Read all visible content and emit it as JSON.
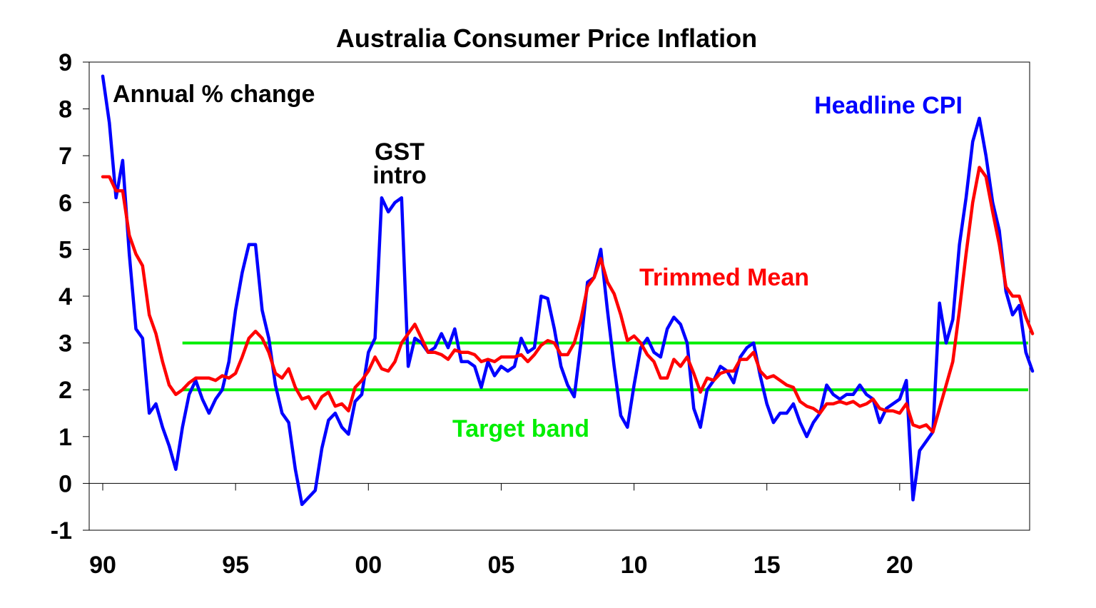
{
  "chart_data": {
    "type": "line",
    "title": "Australia Consumer Price Inflation",
    "subtitle": "Annual % change",
    "xlabel": "",
    "ylabel": "",
    "ylim": [
      -1,
      9
    ],
    "xlim": [
      1990,
      2025
    ],
    "yticks": [
      -1,
      0,
      1,
      2,
      3,
      4,
      5,
      6,
      7,
      8,
      9
    ],
    "ytick_labels": [
      "-1",
      "0",
      "1",
      "2",
      "3",
      "4",
      "5",
      "6",
      "7",
      "8",
      "9"
    ],
    "xticks": [
      1990,
      1995,
      2000,
      2005,
      2010,
      2015,
      2020
    ],
    "xtick_labels": [
      "90",
      "95",
      "00",
      "05",
      "10",
      "15",
      "20"
    ],
    "grid": false,
    "colors": {
      "headline": "#0000ff",
      "trimmed": "#ff0000",
      "target": "#00ee00",
      "axis": "#000000"
    },
    "annotations": [
      {
        "name": "gst",
        "lines": [
          "GST",
          "intro"
        ],
        "color": "#000000"
      },
      {
        "name": "headline",
        "lines": [
          "Headline CPI"
        ],
        "color": "#0000ff"
      },
      {
        "name": "trimmed",
        "lines": [
          "Trimmed Mean"
        ],
        "color": "#ff0000"
      },
      {
        "name": "target",
        "lines": [
          "Target band"
        ],
        "color": "#00ee00"
      }
    ],
    "target_band": {
      "lower": 2,
      "upper": 3,
      "x_start": 1993.0,
      "x_end": 2025.0
    },
    "series": [
      {
        "name": "Headline CPI",
        "color": "#0000ff",
        "points": [
          [
            1990.0,
            8.7
          ],
          [
            1990.25,
            7.7
          ],
          [
            1990.5,
            6.1
          ],
          [
            1990.75,
            6.9
          ],
          [
            1991.0,
            4.9
          ],
          [
            1991.25,
            3.3
          ],
          [
            1991.5,
            3.1
          ],
          [
            1991.75,
            1.5
          ],
          [
            1992.0,
            1.7
          ],
          [
            1992.25,
            1.2
          ],
          [
            1992.5,
            0.8
          ],
          [
            1992.75,
            0.3
          ],
          [
            1993.0,
            1.2
          ],
          [
            1993.25,
            1.9
          ],
          [
            1993.5,
            2.2
          ],
          [
            1993.75,
            1.8
          ],
          [
            1994.0,
            1.5
          ],
          [
            1994.25,
            1.8
          ],
          [
            1994.5,
            2.0
          ],
          [
            1994.75,
            2.6
          ],
          [
            1995.0,
            3.7
          ],
          [
            1995.25,
            4.5
          ],
          [
            1995.5,
            5.1
          ],
          [
            1995.75,
            5.1
          ],
          [
            1996.0,
            3.7
          ],
          [
            1996.25,
            3.1
          ],
          [
            1996.5,
            2.1
          ],
          [
            1996.75,
            1.5
          ],
          [
            1997.0,
            1.3
          ],
          [
            1997.25,
            0.3
          ],
          [
            1997.5,
            -0.45
          ],
          [
            1997.75,
            -0.3
          ],
          [
            1998.0,
            -0.15
          ],
          [
            1998.25,
            0.75
          ],
          [
            1998.5,
            1.35
          ],
          [
            1998.75,
            1.5
          ],
          [
            1999.0,
            1.2
          ],
          [
            1999.25,
            1.05
          ],
          [
            1999.5,
            1.75
          ],
          [
            1999.75,
            1.9
          ],
          [
            2000.0,
            2.8
          ],
          [
            2000.25,
            3.1
          ],
          [
            2000.5,
            6.1
          ],
          [
            2000.75,
            5.8
          ],
          [
            2001.0,
            6.0
          ],
          [
            2001.25,
            6.1
          ],
          [
            2001.5,
            2.5
          ],
          [
            2001.75,
            3.1
          ],
          [
            2002.0,
            3.0
          ],
          [
            2002.25,
            2.8
          ],
          [
            2002.5,
            2.9
          ],
          [
            2002.75,
            3.2
          ],
          [
            2003.0,
            2.9
          ],
          [
            2003.25,
            3.3
          ],
          [
            2003.5,
            2.6
          ],
          [
            2003.75,
            2.6
          ],
          [
            2004.0,
            2.5
          ],
          [
            2004.25,
            2.05
          ],
          [
            2004.5,
            2.6
          ],
          [
            2004.75,
            2.3
          ],
          [
            2005.0,
            2.5
          ],
          [
            2005.25,
            2.4
          ],
          [
            2005.5,
            2.5
          ],
          [
            2005.75,
            3.1
          ],
          [
            2006.0,
            2.8
          ],
          [
            2006.25,
            2.9
          ],
          [
            2006.5,
            4.0
          ],
          [
            2006.75,
            3.95
          ],
          [
            2007.0,
            3.3
          ],
          [
            2007.25,
            2.5
          ],
          [
            2007.5,
            2.1
          ],
          [
            2007.75,
            1.85
          ],
          [
            2008.0,
            3.0
          ],
          [
            2008.25,
            4.3
          ],
          [
            2008.5,
            4.4
          ],
          [
            2008.75,
            5.0
          ],
          [
            2009.0,
            3.7
          ],
          [
            2009.25,
            2.5
          ],
          [
            2009.5,
            1.45
          ],
          [
            2009.75,
            1.2
          ],
          [
            2010.0,
            2.1
          ],
          [
            2010.25,
            2.9
          ],
          [
            2010.5,
            3.1
          ],
          [
            2010.75,
            2.8
          ],
          [
            2011.0,
            2.7
          ],
          [
            2011.25,
            3.3
          ],
          [
            2011.5,
            3.55
          ],
          [
            2011.75,
            3.4
          ],
          [
            2012.0,
            3.0
          ],
          [
            2012.25,
            1.6
          ],
          [
            2012.5,
            1.2
          ],
          [
            2012.75,
            2.0
          ],
          [
            2013.0,
            2.2
          ],
          [
            2013.25,
            2.5
          ],
          [
            2013.5,
            2.4
          ],
          [
            2013.75,
            2.15
          ],
          [
            2014.0,
            2.7
          ],
          [
            2014.25,
            2.9
          ],
          [
            2014.5,
            3.0
          ],
          [
            2014.75,
            2.3
          ],
          [
            2015.0,
            1.7
          ],
          [
            2015.25,
            1.3
          ],
          [
            2015.5,
            1.5
          ],
          [
            2015.75,
            1.5
          ],
          [
            2016.0,
            1.7
          ],
          [
            2016.25,
            1.3
          ],
          [
            2016.5,
            1.0
          ],
          [
            2016.75,
            1.3
          ],
          [
            2017.0,
            1.5
          ],
          [
            2017.25,
            2.1
          ],
          [
            2017.5,
            1.9
          ],
          [
            2017.75,
            1.8
          ],
          [
            2018.0,
            1.9
          ],
          [
            2018.25,
            1.9
          ],
          [
            2018.5,
            2.1
          ],
          [
            2018.75,
            1.9
          ],
          [
            2019.0,
            1.8
          ],
          [
            2019.25,
            1.3
          ],
          [
            2019.5,
            1.6
          ],
          [
            2019.75,
            1.7
          ],
          [
            2020.0,
            1.8
          ],
          [
            2020.25,
            2.2
          ],
          [
            2020.5,
            -0.35
          ],
          [
            2020.75,
            0.7
          ],
          [
            2021.0,
            0.9
          ],
          [
            2021.25,
            1.1
          ],
          [
            2021.5,
            3.85
          ],
          [
            2021.75,
            3.0
          ],
          [
            2022.0,
            3.5
          ],
          [
            2022.25,
            5.1
          ],
          [
            2022.5,
            6.1
          ],
          [
            2022.75,
            7.3
          ],
          [
            2023.0,
            7.8
          ],
          [
            2023.25,
            7.0
          ],
          [
            2023.5,
            6.0
          ],
          [
            2023.75,
            5.4
          ],
          [
            2024.0,
            4.1
          ],
          [
            2024.25,
            3.6
          ],
          [
            2024.5,
            3.8
          ],
          [
            2024.75,
            2.8
          ],
          [
            2025.0,
            2.4
          ]
        ]
      },
      {
        "name": "Trimmed Mean",
        "color": "#ff0000",
        "points": [
          [
            1990.0,
            6.55
          ],
          [
            1990.25,
            6.55
          ],
          [
            1990.5,
            6.25
          ],
          [
            1990.75,
            6.25
          ],
          [
            1991.0,
            5.3
          ],
          [
            1991.25,
            4.9
          ],
          [
            1991.5,
            4.65
          ],
          [
            1991.75,
            3.6
          ],
          [
            1992.0,
            3.2
          ],
          [
            1992.25,
            2.6
          ],
          [
            1992.5,
            2.1
          ],
          [
            1992.75,
            1.9
          ],
          [
            1993.0,
            2.0
          ],
          [
            1993.25,
            2.15
          ],
          [
            1993.5,
            2.25
          ],
          [
            1993.75,
            2.25
          ],
          [
            1994.0,
            2.25
          ],
          [
            1994.25,
            2.2
          ],
          [
            1994.5,
            2.3
          ],
          [
            1994.75,
            2.25
          ],
          [
            1995.0,
            2.35
          ],
          [
            1995.25,
            2.7
          ],
          [
            1995.5,
            3.1
          ],
          [
            1995.75,
            3.25
          ],
          [
            1996.0,
            3.1
          ],
          [
            1996.25,
            2.8
          ],
          [
            1996.5,
            2.35
          ],
          [
            1996.75,
            2.25
          ],
          [
            1997.0,
            2.45
          ],
          [
            1997.25,
            2.05
          ],
          [
            1997.5,
            1.8
          ],
          [
            1997.75,
            1.85
          ],
          [
            1998.0,
            1.6
          ],
          [
            1998.25,
            1.85
          ],
          [
            1998.5,
            1.95
          ],
          [
            1998.75,
            1.65
          ],
          [
            1999.0,
            1.7
          ],
          [
            1999.25,
            1.55
          ],
          [
            1999.5,
            2.05
          ],
          [
            1999.75,
            2.2
          ],
          [
            2000.0,
            2.4
          ],
          [
            2000.25,
            2.7
          ],
          [
            2000.5,
            2.45
          ],
          [
            2000.75,
            2.4
          ],
          [
            2001.0,
            2.6
          ],
          [
            2001.25,
            3.0
          ],
          [
            2001.5,
            3.2
          ],
          [
            2001.75,
            3.4
          ],
          [
            2002.0,
            3.1
          ],
          [
            2002.25,
            2.8
          ],
          [
            2002.5,
            2.8
          ],
          [
            2002.75,
            2.75
          ],
          [
            2003.0,
            2.65
          ],
          [
            2003.25,
            2.85
          ],
          [
            2003.5,
            2.8
          ],
          [
            2003.75,
            2.8
          ],
          [
            2004.0,
            2.75
          ],
          [
            2004.25,
            2.6
          ],
          [
            2004.5,
            2.65
          ],
          [
            2004.75,
            2.6
          ],
          [
            2005.0,
            2.7
          ],
          [
            2005.25,
            2.7
          ],
          [
            2005.5,
            2.7
          ],
          [
            2005.75,
            2.75
          ],
          [
            2006.0,
            2.6
          ],
          [
            2006.25,
            2.75
          ],
          [
            2006.5,
            2.95
          ],
          [
            2006.75,
            3.05
          ],
          [
            2007.0,
            3.0
          ],
          [
            2007.25,
            2.75
          ],
          [
            2007.5,
            2.75
          ],
          [
            2007.75,
            3.0
          ],
          [
            2008.0,
            3.5
          ],
          [
            2008.25,
            4.2
          ],
          [
            2008.5,
            4.4
          ],
          [
            2008.75,
            4.8
          ],
          [
            2009.0,
            4.3
          ],
          [
            2009.25,
            4.05
          ],
          [
            2009.5,
            3.6
          ],
          [
            2009.75,
            3.05
          ],
          [
            2010.0,
            3.15
          ],
          [
            2010.25,
            3.0
          ],
          [
            2010.5,
            2.75
          ],
          [
            2010.75,
            2.6
          ],
          [
            2011.0,
            2.25
          ],
          [
            2011.25,
            2.25
          ],
          [
            2011.5,
            2.65
          ],
          [
            2011.75,
            2.5
          ],
          [
            2012.0,
            2.7
          ],
          [
            2012.25,
            2.35
          ],
          [
            2012.5,
            1.95
          ],
          [
            2012.75,
            2.25
          ],
          [
            2013.0,
            2.2
          ],
          [
            2013.25,
            2.35
          ],
          [
            2013.5,
            2.4
          ],
          [
            2013.75,
            2.4
          ],
          [
            2014.0,
            2.65
          ],
          [
            2014.25,
            2.65
          ],
          [
            2014.5,
            2.8
          ],
          [
            2014.75,
            2.4
          ],
          [
            2015.0,
            2.25
          ],
          [
            2015.25,
            2.3
          ],
          [
            2015.5,
            2.2
          ],
          [
            2015.75,
            2.1
          ],
          [
            2016.0,
            2.05
          ],
          [
            2016.25,
            1.75
          ],
          [
            2016.5,
            1.65
          ],
          [
            2016.75,
            1.6
          ],
          [
            2017.0,
            1.5
          ],
          [
            2017.25,
            1.7
          ],
          [
            2017.5,
            1.7
          ],
          [
            2017.75,
            1.75
          ],
          [
            2018.0,
            1.7
          ],
          [
            2018.25,
            1.75
          ],
          [
            2018.5,
            1.65
          ],
          [
            2018.75,
            1.7
          ],
          [
            2019.0,
            1.8
          ],
          [
            2019.25,
            1.6
          ],
          [
            2019.5,
            1.55
          ],
          [
            2019.75,
            1.55
          ],
          [
            2020.0,
            1.5
          ],
          [
            2020.25,
            1.7
          ],
          [
            2020.5,
            1.25
          ],
          [
            2020.75,
            1.2
          ],
          [
            2021.0,
            1.25
          ],
          [
            2021.25,
            1.1
          ],
          [
            2021.5,
            1.6
          ],
          [
            2021.75,
            2.1
          ],
          [
            2022.0,
            2.6
          ],
          [
            2022.25,
            3.7
          ],
          [
            2022.5,
            4.9
          ],
          [
            2022.75,
            6.0
          ],
          [
            2023.0,
            6.75
          ],
          [
            2023.25,
            6.55
          ],
          [
            2023.5,
            5.8
          ],
          [
            2023.75,
            5.1
          ],
          [
            2024.0,
            4.2
          ],
          [
            2024.25,
            4.0
          ],
          [
            2024.5,
            4.0
          ],
          [
            2024.75,
            3.55
          ],
          [
            2025.0,
            3.2
          ]
        ]
      }
    ]
  }
}
